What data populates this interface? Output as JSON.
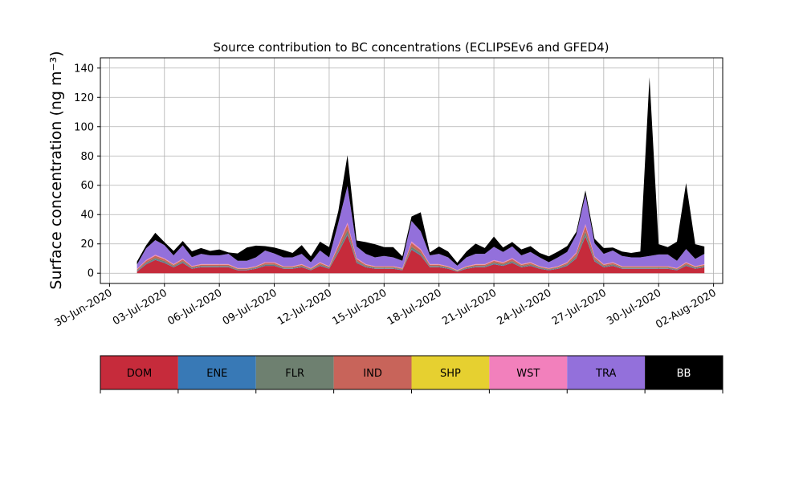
{
  "chart_data": {
    "type": "area",
    "stacked": true,
    "title": "Source contribution to BC concentrations (ECLIPSEv6 and GFED4)",
    "ylabel": "Surface concentration (ng m⁻³)",
    "xlabel": "",
    "x_range": [
      "2020-06-29T12:00",
      "2020-08-02T12:00"
    ],
    "ylim": [
      -7,
      147
    ],
    "yticks": [
      0,
      20,
      40,
      60,
      80,
      100,
      120,
      140
    ],
    "xticks": [
      {
        "date": "2020-06-30",
        "label": "30-Jun-2020"
      },
      {
        "date": "2020-07-03",
        "label": "03-Jul-2020"
      },
      {
        "date": "2020-07-06",
        "label": "06-Jul-2020"
      },
      {
        "date": "2020-07-09",
        "label": "09-Jul-2020"
      },
      {
        "date": "2020-07-12",
        "label": "12-Jul-2020"
      },
      {
        "date": "2020-07-15",
        "label": "15-Jul-2020"
      },
      {
        "date": "2020-07-18",
        "label": "18-Jul-2020"
      },
      {
        "date": "2020-07-21",
        "label": "21-Jul-2020"
      },
      {
        "date": "2020-07-24",
        "label": "24-Jul-2020"
      },
      {
        "date": "2020-07-27",
        "label": "27-Jul-2020"
      },
      {
        "date": "2020-07-30",
        "label": "30-Jul-2020"
      },
      {
        "date": "2020-08-02",
        "label": "02-Aug-2020"
      }
    ],
    "grid": true,
    "legend_position": "bottom",
    "x": [
      "2020-07-01T12:00",
      "2020-07-02T00:00",
      "2020-07-02T12:00",
      "2020-07-03T00:00",
      "2020-07-03T12:00",
      "2020-07-04T00:00",
      "2020-07-04T12:00",
      "2020-07-05T00:00",
      "2020-07-05T12:00",
      "2020-07-06T00:00",
      "2020-07-06T12:00",
      "2020-07-07T00:00",
      "2020-07-07T12:00",
      "2020-07-08T00:00",
      "2020-07-08T12:00",
      "2020-07-09T00:00",
      "2020-07-09T12:00",
      "2020-07-10T00:00",
      "2020-07-10T12:00",
      "2020-07-11T00:00",
      "2020-07-11T12:00",
      "2020-07-12T00:00",
      "2020-07-12T12:00",
      "2020-07-13T00:00",
      "2020-07-13T12:00",
      "2020-07-14T00:00",
      "2020-07-14T12:00",
      "2020-07-15T00:00",
      "2020-07-15T12:00",
      "2020-07-16T00:00",
      "2020-07-16T12:00",
      "2020-07-17T00:00",
      "2020-07-17T12:00",
      "2020-07-18T00:00",
      "2020-07-18T12:00",
      "2020-07-19T00:00",
      "2020-07-19T12:00",
      "2020-07-20T00:00",
      "2020-07-20T12:00",
      "2020-07-21T00:00",
      "2020-07-21T12:00",
      "2020-07-22T00:00",
      "2020-07-22T12:00",
      "2020-07-23T00:00",
      "2020-07-23T12:00",
      "2020-07-24T00:00",
      "2020-07-24T12:00",
      "2020-07-25T00:00",
      "2020-07-25T12:00",
      "2020-07-26T00:00",
      "2020-07-26T12:00",
      "2020-07-27T00:00",
      "2020-07-27T12:00",
      "2020-07-28T00:00",
      "2020-07-28T12:00",
      "2020-07-29T00:00",
      "2020-07-29T12:00",
      "2020-07-30T00:00",
      "2020-07-30T12:00",
      "2020-07-31T00:00",
      "2020-07-31T12:00",
      "2020-08-01T00:00",
      "2020-08-01T12:00"
    ],
    "series": [
      {
        "name": "DOM",
        "color": "#c62b3b",
        "values": [
          1,
          6,
          9,
          7,
          4,
          7,
          3,
          4,
          4,
          4,
          4,
          2,
          2,
          3,
          5,
          5,
          3,
          3,
          4,
          2,
          5,
          3,
          14,
          26,
          7,
          4,
          3,
          3,
          3,
          2,
          16,
          12,
          4,
          4,
          3,
          1,
          3,
          4,
          4,
          6,
          5,
          7,
          4,
          5,
          3,
          2,
          3,
          5,
          10,
          25,
          8,
          4,
          5,
          3,
          3,
          3,
          3,
          3,
          3,
          2,
          5,
          3,
          4
        ]
      },
      {
        "name": "ENE",
        "color": "#3879b6",
        "values": [
          0.3,
          0.4,
          0.4,
          0.4,
          0.3,
          0.4,
          0.3,
          0.3,
          0.3,
          0.3,
          0.3,
          0.2,
          0.2,
          0.3,
          0.3,
          0.3,
          0.3,
          0.3,
          0.3,
          0.2,
          0.3,
          0.3,
          0.5,
          0.7,
          0.4,
          0.3,
          0.3,
          0.3,
          0.3,
          0.2,
          0.5,
          0.5,
          0.3,
          0.3,
          0.3,
          0.2,
          0.3,
          0.3,
          0.3,
          0.4,
          0.3,
          0.4,
          0.3,
          0.3,
          0.3,
          0.2,
          0.3,
          0.3,
          0.4,
          0.7,
          0.4,
          0.3,
          0.3,
          0.3,
          0.3,
          0.3,
          0.3,
          0.3,
          0.3,
          0.2,
          0.3,
          0.3,
          0.3
        ]
      },
      {
        "name": "FLR",
        "color": "#6e8070",
        "values": [
          0.5,
          0.8,
          1,
          0.9,
          0.6,
          0.8,
          0.5,
          0.6,
          0.6,
          0.6,
          0.6,
          0.4,
          0.4,
          0.5,
          0.7,
          0.7,
          0.5,
          0.5,
          0.6,
          0.4,
          0.7,
          0.5,
          1.5,
          2.5,
          0.9,
          0.6,
          0.5,
          0.5,
          0.5,
          0.4,
          1.6,
          1.3,
          0.6,
          0.6,
          0.5,
          0.3,
          0.5,
          0.6,
          0.6,
          0.8,
          0.7,
          0.9,
          0.6,
          0.7,
          0.5,
          0.4,
          0.5,
          0.7,
          1.2,
          2.5,
          1,
          0.6,
          0.7,
          0.5,
          0.5,
          0.5,
          0.5,
          0.5,
          0.5,
          0.4,
          0.7,
          0.5,
          0.6
        ]
      },
      {
        "name": "IND",
        "color": "#c8645a",
        "values": [
          0.7,
          1.2,
          1.5,
          1.3,
          0.8,
          1.2,
          0.7,
          0.8,
          0.8,
          0.8,
          0.8,
          0.5,
          0.5,
          0.6,
          1,
          1,
          0.6,
          0.6,
          0.8,
          0.5,
          1,
          0.6,
          2.5,
          4,
          1.4,
          0.8,
          0.6,
          0.6,
          0.6,
          0.5,
          2.6,
          2,
          0.8,
          0.8,
          0.6,
          0.3,
          0.6,
          0.8,
          0.8,
          1.2,
          1,
          1.4,
          0.8,
          1,
          0.6,
          0.5,
          0.6,
          1,
          1.8,
          4,
          1.5,
          0.8,
          1,
          0.6,
          0.6,
          0.6,
          0.6,
          0.6,
          0.6,
          0.5,
          1,
          0.6,
          0.8
        ]
      },
      {
        "name": "SHP",
        "color": "#e6d030",
        "values": [
          0.1,
          0.1,
          0.1,
          0.1,
          0.1,
          0.1,
          0.1,
          0.1,
          0.1,
          0.1,
          0.1,
          0.1,
          0.1,
          0.1,
          0.1,
          0.1,
          0.1,
          0.1,
          0.1,
          0.1,
          0.1,
          0.1,
          0.1,
          0.1,
          0.1,
          0.1,
          0.1,
          0.1,
          0.1,
          0.1,
          0.1,
          0.1,
          0.1,
          0.1,
          0.1,
          0.1,
          0.1,
          0.1,
          0.1,
          0.1,
          0.1,
          0.1,
          0.1,
          0.1,
          0.1,
          0.1,
          0.1,
          0.1,
          0.1,
          0.1,
          0.1,
          0.1,
          0.1,
          0.1,
          0.1,
          0.1,
          0.1,
          0.1,
          0.1,
          0.1,
          0.1,
          0.1,
          0.1
        ]
      },
      {
        "name": "WST",
        "color": "#f280bc",
        "values": [
          0.3,
          0.5,
          0.6,
          0.5,
          0.4,
          0.5,
          0.3,
          0.4,
          0.4,
          0.4,
          0.4,
          0.3,
          0.3,
          0.3,
          0.4,
          0.4,
          0.3,
          0.3,
          0.4,
          0.3,
          0.4,
          0.3,
          0.8,
          1.2,
          0.5,
          0.4,
          0.3,
          0.3,
          0.3,
          0.3,
          0.9,
          0.7,
          0.4,
          0.4,
          0.3,
          0.2,
          0.3,
          0.4,
          0.4,
          0.5,
          0.4,
          0.5,
          0.4,
          0.4,
          0.3,
          0.3,
          0.3,
          0.4,
          0.7,
          1.2,
          0.5,
          0.4,
          0.4,
          0.3,
          0.3,
          0.3,
          0.3,
          0.3,
          0.3,
          0.3,
          0.4,
          0.3,
          0.4
        ]
      },
      {
        "name": "TRA",
        "color": "#9370db",
        "values": [
          3,
          8,
          10,
          9,
          6,
          9,
          6,
          7,
          6,
          6,
          7,
          5,
          5,
          6,
          8,
          6,
          6,
          6,
          7,
          4,
          8,
          6,
          15,
          25,
          8,
          7,
          6,
          7,
          6,
          5,
          14,
          12,
          6,
          7,
          6,
          3,
          6,
          7,
          7,
          9,
          7,
          8,
          6,
          7,
          6,
          4,
          6,
          7,
          12,
          20,
          9,
          7,
          8,
          7,
          6,
          6,
          7,
          8,
          8,
          5,
          9,
          5,
          7
        ]
      },
      {
        "name": "BB",
        "color": "#000000",
        "values": [
          2,
          2,
          5,
          2,
          3,
          3,
          4,
          4,
          3,
          4,
          1,
          5,
          9,
          8,
          3,
          4,
          5,
          3,
          6,
          4,
          6,
          7,
          8,
          21,
          4,
          8,
          9,
          6,
          7,
          3,
          3,
          13,
          2,
          5,
          4,
          2,
          4,
          7,
          4,
          7,
          3,
          3,
          4,
          4,
          3,
          4,
          4,
          4,
          2,
          3,
          3,
          4,
          2,
          3,
          3,
          4,
          122,
          7,
          5,
          13,
          45,
          10,
          5
        ]
      }
    ]
  }
}
